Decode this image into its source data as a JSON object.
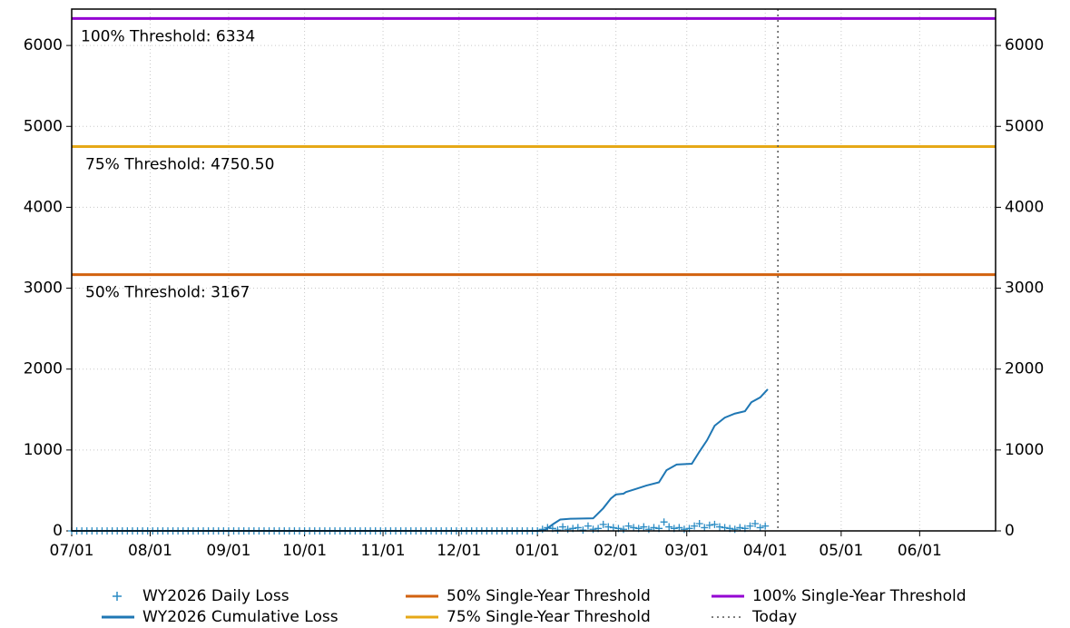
{
  "chart_data": {
    "type": "line",
    "xlim": [
      0,
      365
    ],
    "xticks": [
      {
        "value": 0,
        "label": "07/01"
      },
      {
        "value": 31,
        "label": "08/01"
      },
      {
        "value": 62,
        "label": "09/01"
      },
      {
        "value": 92,
        "label": "10/01"
      },
      {
        "value": 123,
        "label": "11/01"
      },
      {
        "value": 153,
        "label": "12/01"
      },
      {
        "value": 184,
        "label": "01/01"
      },
      {
        "value": 215,
        "label": "02/01"
      },
      {
        "value": 243,
        "label": "03/01"
      },
      {
        "value": 274,
        "label": "04/01"
      },
      {
        "value": 304,
        "label": "05/01"
      },
      {
        "value": 335,
        "label": "06/01"
      }
    ],
    "ylim": [
      0,
      6450
    ],
    "yticks": [
      0,
      1000,
      2000,
      3000,
      4000,
      5000,
      6000
    ],
    "y2lim": [
      0,
      6450
    ],
    "y2ticks": [
      0,
      1000,
      2000,
      3000,
      4000,
      5000,
      6000
    ],
    "grid": true,
    "series": [
      {
        "name": "WY2026 Daily Loss",
        "color": "#2b8cc4",
        "marker": "plus",
        "x": [
          0,
          2,
          4,
          6,
          8,
          10,
          12,
          14,
          16,
          18,
          20,
          22,
          24,
          26,
          28,
          30,
          32,
          34,
          36,
          38,
          40,
          42,
          44,
          46,
          48,
          50,
          52,
          54,
          56,
          58,
          60,
          62,
          64,
          66,
          68,
          70,
          72,
          74,
          76,
          78,
          80,
          82,
          84,
          86,
          88,
          90,
          92,
          94,
          96,
          98,
          100,
          102,
          104,
          106,
          108,
          110,
          112,
          114,
          116,
          118,
          120,
          122,
          124,
          126,
          128,
          130,
          132,
          134,
          136,
          138,
          140,
          142,
          144,
          146,
          148,
          150,
          152,
          154,
          156,
          158,
          160,
          162,
          164,
          166,
          168,
          170,
          172,
          174,
          176,
          178,
          180,
          182,
          184,
          186,
          188,
          190,
          192,
          194,
          196,
          198,
          200,
          202,
          204,
          206,
          208,
          210,
          212,
          214,
          216,
          218,
          220,
          222,
          224,
          226,
          228,
          230,
          232,
          234,
          236,
          238,
          240,
          242,
          244,
          246,
          248,
          250,
          252,
          254,
          256,
          258,
          260,
          262,
          264,
          266,
          268,
          270,
          272,
          274
        ],
        "values": [
          0,
          0,
          0,
          0,
          0,
          0,
          0,
          0,
          0,
          0,
          0,
          0,
          0,
          0,
          0,
          0,
          0,
          0,
          0,
          0,
          0,
          0,
          0,
          0,
          0,
          0,
          0,
          0,
          0,
          0,
          0,
          0,
          0,
          0,
          0,
          0,
          0,
          0,
          0,
          0,
          0,
          0,
          0,
          0,
          0,
          0,
          0,
          0,
          0,
          0,
          0,
          0,
          0,
          0,
          0,
          0,
          0,
          0,
          0,
          0,
          0,
          0,
          0,
          0,
          0,
          0,
          0,
          0,
          0,
          0,
          0,
          0,
          0,
          0,
          0,
          0,
          0,
          0,
          0,
          0,
          0,
          0,
          0,
          0,
          0,
          0,
          0,
          0,
          0,
          0,
          0,
          0,
          0,
          20,
          40,
          30,
          10,
          50,
          20,
          30,
          40,
          10,
          60,
          20,
          30,
          80,
          50,
          40,
          30,
          20,
          60,
          40,
          30,
          50,
          20,
          40,
          30,
          110,
          50,
          30,
          40,
          20,
          30,
          60,
          90,
          40,
          70,
          80,
          50,
          40,
          30,
          20,
          40,
          30,
          60,
          90,
          40,
          60
        ]
      },
      {
        "name": "WY2026 Cumulative Loss",
        "color": "#1f77b4",
        "marker": "line",
        "x": [
          0,
          184,
          187,
          190,
          193,
          197,
          206,
          210,
          213,
          215,
          218,
          219,
          223,
          227,
          232,
          235,
          239,
          245,
          248,
          251,
          254,
          258,
          262,
          266,
          268.5,
          272,
          275
        ],
        "values": [
          0,
          0,
          10,
          80,
          140,
          150,
          155,
          280,
          400,
          450,
          460,
          480,
          520,
          560,
          600,
          750,
          820,
          830,
          980,
          1120,
          1300,
          1400,
          1450,
          1480,
          1590,
          1650,
          1750
        ]
      }
    ],
    "thresholds": [
      {
        "name": "50% Single-Year Threshold",
        "color": "#d2620f",
        "value": 3167,
        "label": "50% Threshold: 3167"
      },
      {
        "name": "75% Single-Year Threshold",
        "color": "#e6a817",
        "value": 4750.5,
        "label": "75% Threshold: 4750.50"
      },
      {
        "name": "100% Single-Year Threshold",
        "color": "#9400d3",
        "value": 6334,
        "label": "100% Threshold: 6334"
      }
    ],
    "today": {
      "name": "Today",
      "x": 279,
      "color": "#555555"
    }
  }
}
